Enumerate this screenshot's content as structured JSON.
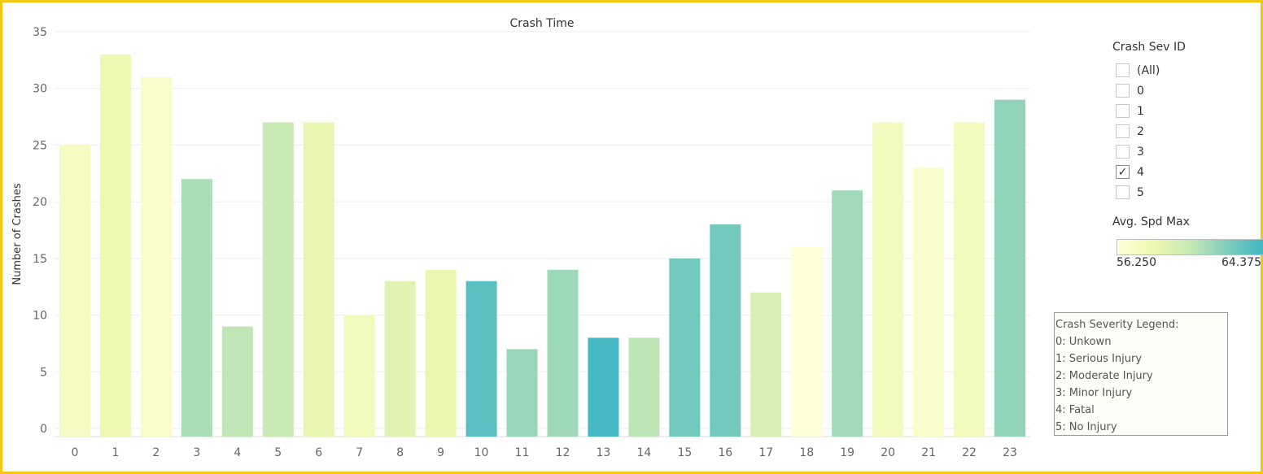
{
  "chart_data": {
    "type": "bar",
    "title": "Crash Time",
    "xlabel": "",
    "ylabel": "Number of Crashes",
    "categories": [
      "0",
      "1",
      "2",
      "3",
      "4",
      "5",
      "6",
      "7",
      "8",
      "9",
      "10",
      "11",
      "12",
      "13",
      "14",
      "15",
      "16",
      "17",
      "18",
      "19",
      "20",
      "21",
      "22",
      "23"
    ],
    "values": [
      25,
      33,
      31,
      22,
      9,
      27,
      27,
      10,
      13,
      14,
      13,
      7,
      14,
      8,
      8,
      15,
      18,
      12,
      16,
      21,
      27,
      23,
      27,
      29
    ],
    "avg_spd_max": [
      57.4,
      58.2,
      57.1,
      61.2,
      60.5,
      60.2,
      58.5,
      57.6,
      59.0,
      58.4,
      63.6,
      61.6,
      61.5,
      64.2,
      60.6,
      62.8,
      62.7,
      59.4,
      56.3,
      61.4,
      57.5,
      56.9,
      57.6,
      61.8
    ],
    "ylim": [
      0,
      35
    ],
    "yticks": [
      0,
      5,
      10,
      15,
      20,
      25,
      30,
      35
    ],
    "grid": true,
    "color_scale": {
      "min": 56.25,
      "max": 64.375,
      "colors": [
        "#ffffd9",
        "#edf8b1",
        "#c7e9b4",
        "#7fcdbb",
        "#41b6c4"
      ]
    }
  },
  "filter": {
    "title": "Crash Sev ID",
    "options": [
      {
        "label": "(All)",
        "checked": false
      },
      {
        "label": "0",
        "checked": false
      },
      {
        "label": "1",
        "checked": false
      },
      {
        "label": "2",
        "checked": false
      },
      {
        "label": "3",
        "checked": false
      },
      {
        "label": "4",
        "checked": true
      },
      {
        "label": "5",
        "checked": false
      }
    ]
  },
  "color_legend": {
    "title": "Avg. Spd Max",
    "min_label": "56.250",
    "max_label": "64.375"
  },
  "severity_legend": {
    "lines": [
      "Crash Severity Legend:",
      "0: Unkown",
      "1: Serious Injury",
      "2: Moderate Injury",
      "3: Minor Injury",
      "4: Fatal",
      "5: No Injury"
    ]
  },
  "colors": {
    "frame": "#f2c811",
    "gridline": "#eeeeee"
  }
}
